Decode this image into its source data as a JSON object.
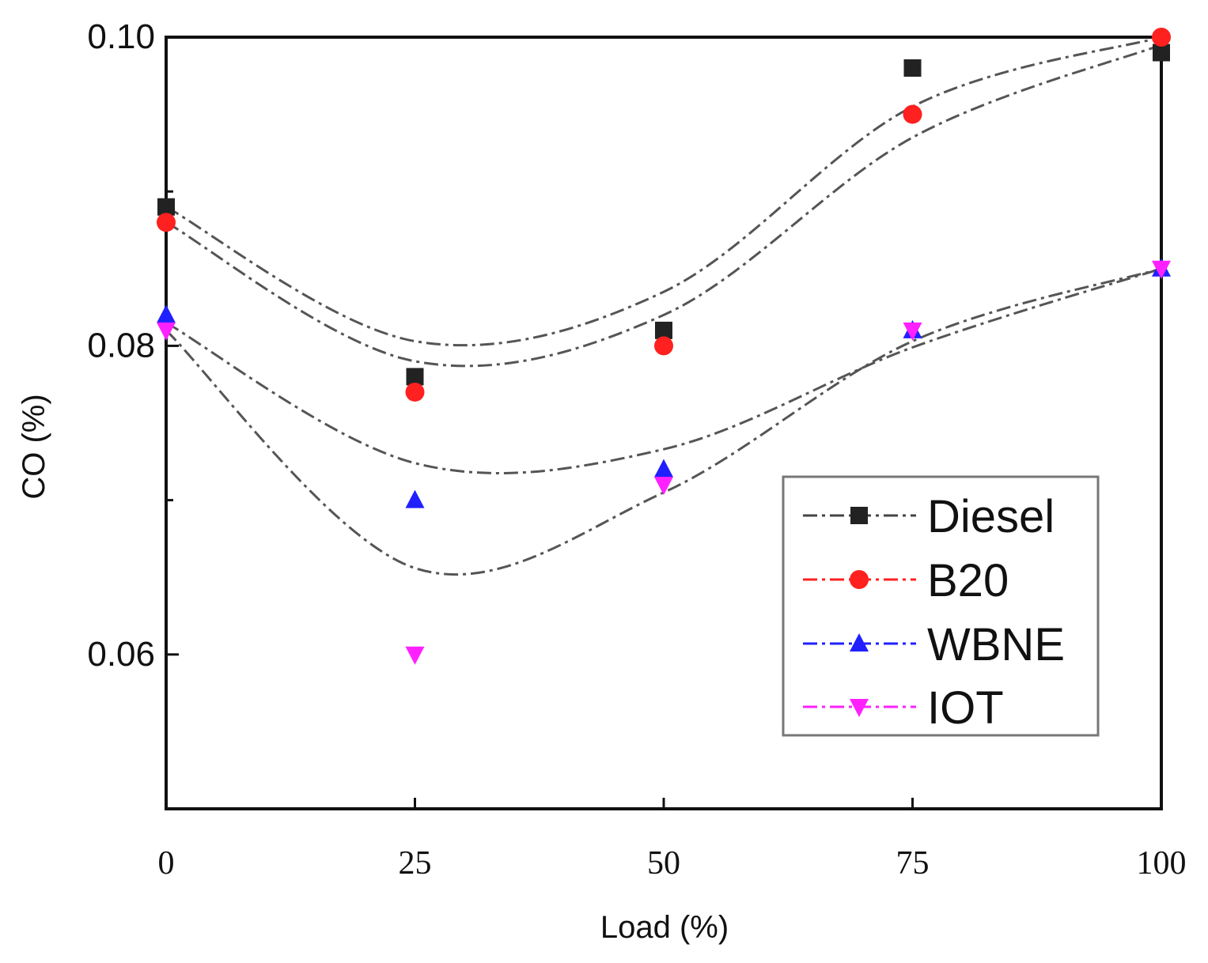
{
  "chart_data": {
    "type": "scatter",
    "title": "",
    "xlabel": "Load (%)",
    "ylabel": "CO (%)",
    "xlim": [
      0,
      100
    ],
    "ylim": [
      0.05,
      0.1
    ],
    "x_ticks": [
      0,
      25,
      50,
      75,
      100
    ],
    "x_tick_labels": [
      "0",
      "25",
      "50",
      "75",
      "100"
    ],
    "y_ticks": [
      0.06,
      0.08,
      0.1
    ],
    "y_tick_labels": [
      "0.06",
      "0.08",
      "0.10"
    ],
    "legend_position": "bottom-right",
    "grid": false,
    "series": [
      {
        "name": "Diesel",
        "marker": "square",
        "color": "#222222",
        "x": [
          0,
          25,
          50,
          75,
          100
        ],
        "values": [
          0.089,
          0.078,
          0.081,
          0.098,
          0.099
        ],
        "fit_curve": [
          0.089,
          0.0803,
          0.0835,
          0.0955,
          0.1
        ]
      },
      {
        "name": "B20",
        "marker": "circle",
        "color": "#ff2020",
        "x": [
          0,
          25,
          50,
          75,
          100
        ],
        "values": [
          0.088,
          0.077,
          0.08,
          0.095,
          0.1
        ],
        "fit_curve": [
          0.088,
          0.079,
          0.082,
          0.0935,
          0.0995
        ]
      },
      {
        "name": "WBNE",
        "marker": "triangle-up",
        "color": "#2020ff",
        "x": [
          0,
          25,
          50,
          75,
          100
        ],
        "values": [
          0.082,
          0.07,
          0.072,
          0.081,
          0.085
        ],
        "fit_curve": [
          0.0815,
          0.0724,
          0.0733,
          0.0799,
          0.085
        ]
      },
      {
        "name": "IOT",
        "marker": "triangle-down",
        "color": "#ff20ff",
        "x": [
          0,
          25,
          50,
          75,
          100
        ],
        "values": [
          0.081,
          0.06,
          0.071,
          0.081,
          0.085
        ],
        "fit_curve": [
          0.081,
          0.0656,
          0.0705,
          0.0803,
          0.085
        ]
      }
    ]
  }
}
